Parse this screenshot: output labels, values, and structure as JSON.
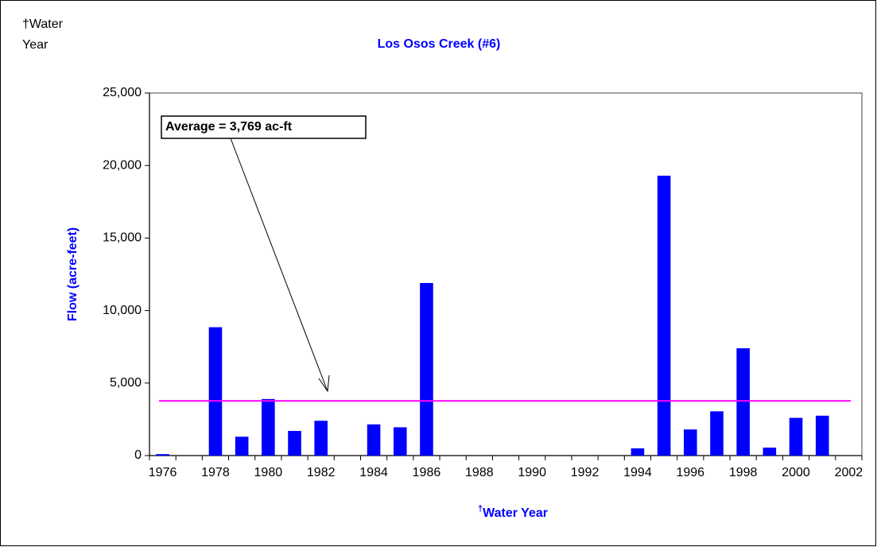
{
  "corner_label": [
    "†Water",
    "Year"
  ],
  "chart_data": {
    "type": "bar",
    "title": "Los Osos Creek (#6)",
    "x_label_prefix": "†",
    "x_label": "Water Year",
    "y_label": "Flow (acre-feet)",
    "categories": [
      "1976",
      null,
      "1978",
      null,
      "1980",
      null,
      "1982",
      null,
      "1984",
      null,
      "1986",
      null,
      "1988",
      null,
      "1990",
      null,
      "1992",
      null,
      "1994",
      null,
      "1996",
      null,
      "1998",
      null,
      "2000",
      null,
      "2002"
    ],
    "values": [
      100,
      0,
      8850,
      1300,
      3900,
      1700,
      2400,
      0,
      2150,
      1950,
      11900,
      0,
      0,
      0,
      0,
      0,
      0,
      0,
      500,
      19300,
      1800,
      3050,
      7400,
      550,
      2600,
      2750,
      0
    ],
    "color": "#0000ff",
    "average": 3769,
    "average_color": "#ff00ff",
    "annotation": "Average = 3,769 ac-ft",
    "ylim": [
      0,
      25000
    ],
    "yticks": [
      0,
      {
        "value": 5000,
        "label": "5,000"
      },
      {
        "value": 10000,
        "label": "10,000"
      },
      {
        "value": 15000,
        "label": "15,000"
      },
      {
        "value": 20000,
        "label": "20,000"
      },
      {
        "value": 25000,
        "label": "25,000"
      }
    ],
    "grid": false
  }
}
